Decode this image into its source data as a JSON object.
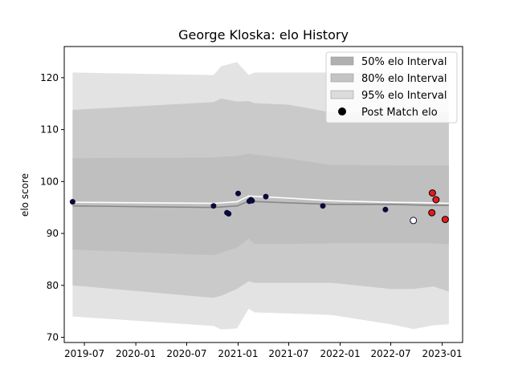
{
  "chart_data": {
    "type": "area",
    "title": "George Kloska: elo History",
    "xlabel": "",
    "ylabel": "elo score",
    "xlim": [
      "2019-04-20",
      "2023-03-15"
    ],
    "ylim": [
      69,
      126
    ],
    "x_ticks": [
      "2019-07",
      "2020-01",
      "2020-07",
      "2021-01",
      "2021-07",
      "2022-01",
      "2022-07",
      "2023-01"
    ],
    "y_ticks": [
      70,
      80,
      90,
      100,
      110,
      120
    ],
    "grid": false,
    "legend_position": "top-right",
    "legend": [
      {
        "label": "50% elo Interval",
        "color": "#b0b0b0",
        "kind": "patch"
      },
      {
        "label": "80% elo Interval",
        "color": "#c4c4c4",
        "kind": "patch"
      },
      {
        "label": "95% elo Interval",
        "color": "#dcdcdc",
        "kind": "patch"
      },
      {
        "label": "Post Match elo",
        "color": "#000000",
        "kind": "marker"
      }
    ],
    "bands": [
      {
        "name": "95% elo Interval",
        "color": "#e3e3e3",
        "x": [
          "2019-05-20",
          "2020-10-05",
          "2020-11-01",
          "2020-12-28",
          "2021-02-08",
          "2021-02-28",
          "2021-07-01",
          "2021-12-01",
          "2022-07-01",
          "2022-09-20",
          "2022-12-01",
          "2023-01-25"
        ],
        "upper": [
          121.0,
          120.5,
          122.2,
          123.0,
          120.5,
          121.0,
          121.0,
          121.0,
          121.0,
          121.0,
          121.0,
          121.0
        ],
        "lower": [
          74.0,
          72.2,
          71.5,
          71.7,
          75.5,
          74.8,
          74.6,
          74.3,
          72.5,
          71.6,
          72.3,
          72.5
        ]
      },
      {
        "name": "80% elo Interval",
        "color": "#cacaca",
        "x": [
          "2019-05-20",
          "2020-10-05",
          "2020-11-01",
          "2020-12-28",
          "2021-02-08",
          "2021-02-28",
          "2021-07-01",
          "2021-12-01",
          "2022-07-01",
          "2022-09-20",
          "2022-12-01",
          "2023-01-25"
        ],
        "upper": [
          113.8,
          115.3,
          116.0,
          115.4,
          115.5,
          115.1,
          114.8,
          113.3,
          113.3,
          113.3,
          113.3,
          113.3
        ],
        "lower": [
          80.0,
          77.6,
          78.0,
          79.3,
          80.8,
          80.5,
          80.5,
          80.5,
          79.3,
          79.3,
          79.8,
          78.8
        ]
      },
      {
        "name": "50% elo Interval",
        "color": "#bfbfbf",
        "x": [
          "2019-05-20",
          "2020-10-05",
          "2020-11-01",
          "2020-12-28",
          "2021-02-08",
          "2021-02-28",
          "2021-07-01",
          "2021-12-01",
          "2022-07-01",
          "2022-09-20",
          "2022-12-01",
          "2023-01-25"
        ],
        "upper": [
          104.5,
          104.6,
          104.8,
          104.9,
          105.4,
          105.2,
          104.4,
          103.2,
          103.1,
          103.1,
          103.1,
          103.1
        ],
        "lower": [
          86.9,
          85.8,
          86.3,
          87.3,
          89.0,
          88.0,
          88.0,
          88.1,
          88.1,
          88.1,
          88.1,
          87.9
        ]
      }
    ],
    "series": [
      {
        "name": "",
        "type": "line",
        "color": "#888888",
        "x": [
          "2019-05-20",
          "2020-10-05",
          "2020-12-28",
          "2021-02-08",
          "2021-07-01",
          "2021-12-01",
          "2022-07-01",
          "2022-12-01",
          "2023-01-25"
        ],
        "values": [
          95.3,
          95.0,
          95.3,
          96.2,
          95.9,
          95.6,
          95.6,
          95.4,
          95.4
        ]
      },
      {
        "name": "",
        "type": "line",
        "color": "#ffffff",
        "x": [
          "2019-05-20",
          "2020-10-05",
          "2020-12-28",
          "2021-02-08",
          "2021-07-01",
          "2021-12-01",
          "2022-07-01",
          "2022-12-01",
          "2023-01-25"
        ],
        "values": [
          96.0,
          95.8,
          96.1,
          97.2,
          96.8,
          96.3,
          96.0,
          95.9,
          95.8
        ]
      },
      {
        "name": "Post Match elo",
        "type": "scatter",
        "points": [
          {
            "x": "2019-05-20",
            "y": 96.1,
            "color": "#0a0a3a"
          },
          {
            "x": "2020-10-05",
            "y": 95.3,
            "color": "#0a0a3a"
          },
          {
            "x": "2020-11-22",
            "y": 94.0,
            "color": "#0a0a3a"
          },
          {
            "x": "2020-11-28",
            "y": 93.8,
            "color": "#0a0a3a"
          },
          {
            "x": "2021-01-01",
            "y": 97.7,
            "color": "#0a0a3a"
          },
          {
            "x": "2021-02-10",
            "y": 96.2,
            "color": "#0a0a3a"
          },
          {
            "x": "2021-02-16",
            "y": 96.5,
            "color": "#0a0a3a"
          },
          {
            "x": "2021-02-20",
            "y": 96.3,
            "color": "#0a0a3a"
          },
          {
            "x": "2021-04-10",
            "y": 97.1,
            "color": "#0a0a3a"
          },
          {
            "x": "2021-10-31",
            "y": 95.3,
            "color": "#0a0a3a"
          },
          {
            "x": "2022-06-12",
            "y": 94.6,
            "color": "#0a0a3a"
          },
          {
            "x": "2022-09-20",
            "y": 92.5,
            "color": "#ffffff"
          },
          {
            "x": "2022-11-25",
            "y": 94.0,
            "color": "#e41a1c"
          },
          {
            "x": "2022-11-27",
            "y": 97.8,
            "color": "#e41a1c"
          },
          {
            "x": "2022-12-10",
            "y": 96.5,
            "color": "#e41a1c"
          },
          {
            "x": "2023-01-12",
            "y": 92.7,
            "color": "#e41a1c"
          }
        ]
      }
    ]
  }
}
